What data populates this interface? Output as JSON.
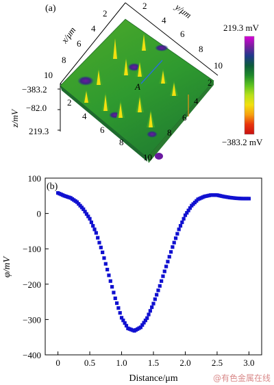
{
  "panel_a": {
    "label": "(a)",
    "x_axis_label": "x/μm",
    "y_axis_label": "y/μm",
    "z_axis_label": "z/mV",
    "x_ticks": [
      "2",
      "4",
      "6",
      "8",
      "10"
    ],
    "y_ticks": [
      "2",
      "4",
      "6",
      "8",
      "10"
    ],
    "x_ticks_front": [
      "2",
      "4",
      "6",
      "8",
      "10"
    ],
    "y_ticks_front": [
      "2",
      "4",
      "6",
      "8"
    ],
    "z_ticks": [
      "−383.2",
      "−82.0",
      "219.3"
    ],
    "corner_label": "10",
    "marker_label": "A",
    "colorbar": {
      "max_label": "219.3 mV",
      "min_label": "−383.2 mV",
      "colors": [
        "#d800d8",
        "#7a1fa0",
        "#1e3a8a",
        "#0d5c3a",
        "#1f8a2a",
        "#5cc21f",
        "#b8e01a",
        "#f2e010",
        "#f7a00f",
        "#e8330c",
        "#c81010"
      ]
    }
  },
  "chart_data": {
    "type": "scatter",
    "label": "(b)",
    "title": "",
    "xlabel": "Distance/μm",
    "ylabel": "φ/mV",
    "xlim": [
      -0.2,
      3.2
    ],
    "ylim": [
      -400,
      100
    ],
    "x_ticks": [
      0,
      0.5,
      1.0,
      1.5,
      2.0,
      2.5,
      3.0
    ],
    "x_tick_labels": [
      "0",
      "0.5",
      "1.0",
      "1.5",
      "2.0",
      "2.5",
      "3.0"
    ],
    "y_ticks": [
      100,
      0,
      -100,
      -200,
      -300,
      -400
    ],
    "y_tick_labels": [
      "100",
      "0",
      "−100",
      "−200",
      "−300",
      "−400"
    ],
    "marker_color": "#1010d0",
    "series": [
      {
        "x": [
          0.0,
          0.1,
          0.2,
          0.3,
          0.4,
          0.5,
          0.6,
          0.7,
          0.8,
          0.9,
          1.0,
          1.1,
          1.2,
          1.3,
          1.4,
          1.5,
          1.6,
          1.7,
          1.8,
          1.9,
          2.0,
          2.1,
          2.2,
          2.3,
          2.4,
          2.5,
          2.6,
          2.7,
          2.8,
          2.9,
          3.0
        ],
        "y": [
          58,
          50,
          44,
          32,
          12,
          -15,
          -55,
          -110,
          -175,
          -240,
          -295,
          -325,
          -332,
          -322,
          -296,
          -255,
          -205,
          -150,
          -95,
          -45,
          -5,
          22,
          40,
          48,
          52,
          52,
          48,
          45,
          43,
          42,
          42
        ]
      }
    ]
  },
  "watermark": "@有色金属在线"
}
